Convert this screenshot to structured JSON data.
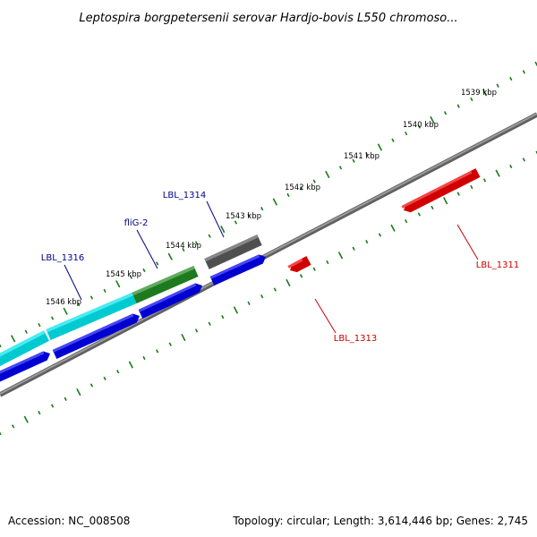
{
  "title": "Leptospira borgpetersenii serovar Hardjo-bovis L550 chromoso...",
  "footer": {
    "accession": "Accession: NC_008508",
    "summary": "Topology: circular; Length: 3,614,446 bp; Genes: 2,745"
  },
  "colors": {
    "backbone": "#808080",
    "tick": "#1a7a1a",
    "forward_label": "#00008b",
    "reverse_label": "#cc0000",
    "cds_forward": "#0000ee",
    "cds_reverse": "#ee0000",
    "feature_cyan": "#00e5ee",
    "feature_green": "#228b22",
    "feature_gray": "#5a5a5a"
  },
  "scale": {
    "unit": "kbp",
    "labels": [
      "1539 kbp",
      "1540 kbp",
      "1541 kbp",
      "1542 kbp",
      "1543 kbp",
      "1544 kbp",
      "1545 kbp",
      "1546 kbp"
    ]
  },
  "genes": [
    {
      "name": "LBL_1316",
      "strand": "forward"
    },
    {
      "name": "fliG-2",
      "strand": "forward"
    },
    {
      "name": "LBL_1314",
      "strand": "forward"
    },
    {
      "name": "LBL_1313",
      "strand": "reverse"
    },
    {
      "name": "LBL_1311",
      "strand": "reverse"
    }
  ]
}
